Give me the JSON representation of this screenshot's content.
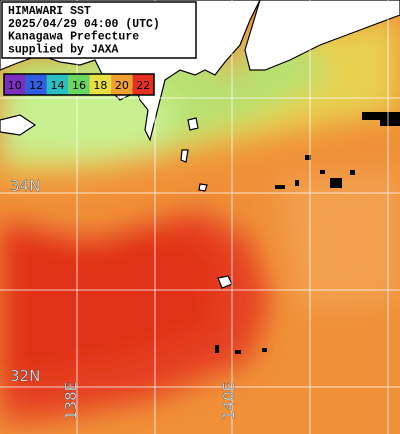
{
  "header": {
    "lines": [
      "HIMAWARI SST",
      "2025/04/29 04:00 (UTC)",
      "Kanagawa Prefecture",
      "supplied by JAXA"
    ]
  },
  "legend": {
    "ticks": [
      10,
      12,
      14,
      16,
      18,
      20,
      22
    ],
    "colors": [
      "#7a2fc0",
      "#2f5fe0",
      "#28c0c0",
      "#6ad860",
      "#e8e040",
      "#f0a030",
      "#e83020"
    ]
  },
  "grid": {
    "lat_labels": [
      "34N",
      "32N"
    ],
    "lon_labels": [
      "138E",
      "140E"
    ]
  }
}
